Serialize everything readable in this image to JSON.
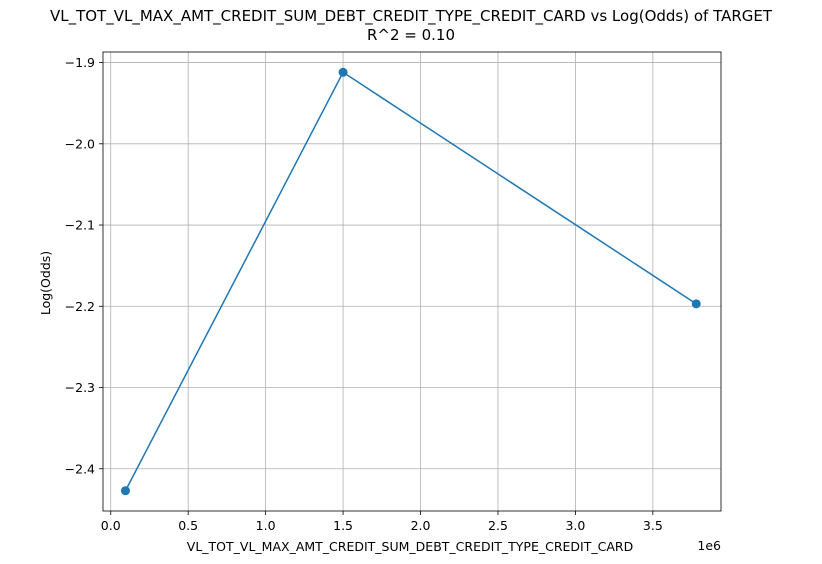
{
  "chart_data": {
    "type": "line",
    "title": "VL_TOT_VL_MAX_AMT_CREDIT_SUM_DEBT_CREDIT_TYPE_CREDIT_CARD vs Log(Odds) of TARGET",
    "subtitle": "R^2 = 0.10",
    "xlabel": "VL_TOT_VL_MAX_AMT_CREDIT_SUM_DEBT_CREDIT_TYPE_CREDIT_CARD",
    "ylabel": "Log(Odds)",
    "x_offset_text": "1e6",
    "x": [
      95000,
      1500000,
      3780000
    ],
    "y": [
      -2.427,
      -1.912,
      -2.197
    ],
    "xlim": [
      -50000,
      3940000
    ],
    "ylim": [
      -2.452,
      -1.887
    ],
    "xticks": [
      0.0,
      0.5,
      1.0,
      1.5,
      2.0,
      2.5,
      3.0,
      3.5
    ],
    "xtick_labels": [
      "0.0",
      "0.5",
      "1.0",
      "1.5",
      "2.0",
      "2.5",
      "3.0",
      "3.5"
    ],
    "xtick_scale": 1000000,
    "yticks": [
      -1.9,
      -2.0,
      -2.1,
      -2.2,
      -2.3,
      -2.4
    ],
    "ytick_labels": [
      "−1.9",
      "−2.0",
      "−2.1",
      "−2.2",
      "−2.3",
      "−2.4"
    ],
    "grid": true,
    "legend": "none",
    "colors": {
      "series": "#1f77b4",
      "grid": "#b0b0b0",
      "axes": "#000000"
    }
  }
}
